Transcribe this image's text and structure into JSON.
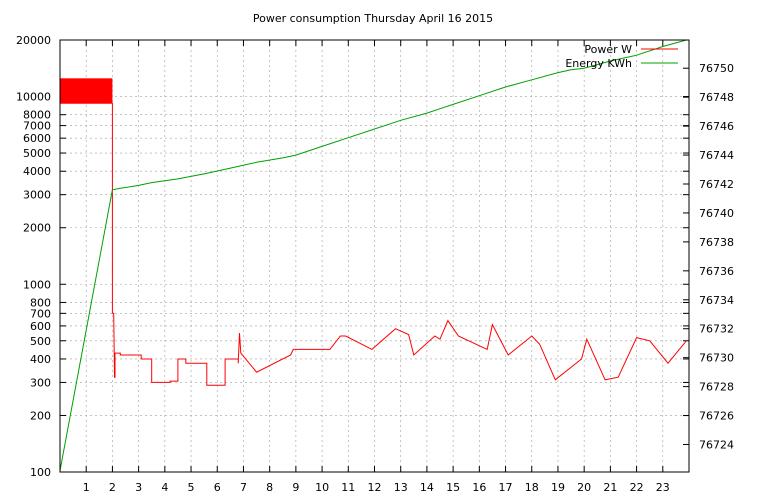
{
  "chart_data": {
    "type": "line",
    "title": "Power consumption Thursday April 16 2015",
    "xlabel": "",
    "ylabel": "",
    "y2label": "",
    "x_range": [
      0,
      24
    ],
    "x_ticks": [
      "1",
      "2",
      "3",
      "4",
      "5",
      "6",
      "7",
      "8",
      "9",
      "10",
      "11",
      "12",
      "13",
      "14",
      "15",
      "16",
      "17",
      "18",
      "19",
      "20",
      "21",
      "22",
      "23"
    ],
    "y_scale": "log",
    "y_range": [
      100,
      20000
    ],
    "y_ticks": [
      {
        "value": 100,
        "label": "100"
      },
      {
        "value": 200,
        "label": "200"
      },
      {
        "value": 300,
        "label": "300"
      },
      {
        "value": 400,
        "label": "400"
      },
      {
        "value": 500,
        "label": "500"
      },
      {
        "value": 600,
        "label": "600"
      },
      {
        "value": 700,
        "label": "700"
      },
      {
        "value": 800,
        "label": "800"
      },
      {
        "value": 1000,
        "label": "1000"
      },
      {
        "value": 2000,
        "label": "2000"
      },
      {
        "value": 3000,
        "label": "3000"
      },
      {
        "value": 4000,
        "label": "4000"
      },
      {
        "value": 5000,
        "label": "5000"
      },
      {
        "value": 6000,
        "label": "6000"
      },
      {
        "value": 7000,
        "label": "7000"
      },
      {
        "value": 8000,
        "label": "8000"
      },
      {
        "value": 10000,
        "label": "10000"
      },
      {
        "value": 20000,
        "label": "20000"
      }
    ],
    "y2_range": [
      76722.1,
      76751.95
    ],
    "y2_ticks": [
      "76724",
      "76726",
      "76728",
      "76730",
      "76732",
      "76734",
      "76736",
      "76738",
      "76740",
      "76742",
      "76744",
      "76746",
      "76748",
      "76750"
    ],
    "grid": true,
    "legend_position": "top-right",
    "series": [
      {
        "name": "Power W",
        "color": "#ff0000",
        "axis": "y",
        "band": {
          "x": [
            0,
            2
          ],
          "y": [
            9200,
            12500
          ]
        },
        "x": [
          0.0,
          2.0,
          2.0,
          2.05,
          2.08,
          2.1,
          2.1,
          2.3,
          2.3,
          3.1,
          3.1,
          3.5,
          3.5,
          4.2,
          4.2,
          4.5,
          4.5,
          4.8,
          4.8,
          5.6,
          5.6,
          6.3,
          6.3,
          6.8,
          6.8,
          6.85,
          6.9,
          6.9,
          7.5,
          7.5,
          8.8,
          8.8,
          8.9,
          8.9,
          10.3,
          10.3,
          10.7,
          10.7,
          10.9,
          10.9,
          11.9,
          11.9,
          12.8,
          12.8,
          13.3,
          13.3,
          13.5,
          13.5,
          14.3,
          14.3,
          14.5,
          14.5,
          14.8,
          14.8,
          15.2,
          15.2,
          16.3,
          16.3,
          16.5,
          16.5,
          17.1,
          17.1,
          18.0,
          18.0,
          18.3,
          18.3,
          18.9,
          18.9,
          19.9,
          19.9,
          20.1,
          20.1,
          20.8,
          20.8,
          21.3,
          21.3,
          22.0,
          22.0,
          22.5,
          22.5,
          23.2,
          23.2,
          23.9
        ],
        "y": [
          9200,
          9200,
          700,
          700,
          320,
          320,
          430,
          430,
          420,
          420,
          400,
          400,
          300,
          300,
          305,
          305,
          400,
          400,
          380,
          380,
          290,
          290,
          400,
          400,
          380,
          550,
          430,
          430,
          340,
          340,
          420,
          420,
          450,
          450,
          450,
          450,
          530,
          530,
          530,
          530,
          450,
          450,
          580,
          580,
          540,
          540,
          420,
          420,
          530,
          530,
          510,
          510,
          640,
          640,
          530,
          530,
          450,
          450,
          610,
          610,
          420,
          420,
          530,
          530,
          480,
          480,
          310,
          310,
          400,
          400,
          510,
          510,
          310,
          310,
          320,
          320,
          520,
          520,
          500,
          500,
          380,
          380,
          500
        ]
      },
      {
        "name": "Energy KWh",
        "color": "#00a000",
        "axis": "y2",
        "x": [
          0,
          2.0,
          2.3,
          3.0,
          3.5,
          4.5,
          5.5,
          6.5,
          7.5,
          8.5,
          9.0,
          10.0,
          11.0,
          12.0,
          13.0,
          14.0,
          14.5,
          15.0,
          16.0,
          17.0,
          18.0,
          19.0,
          19.5,
          20.0,
          21.0,
          22.0,
          23.0,
          23.9
        ],
        "y": [
          76722.2,
          76741.6,
          76741.7,
          76741.9,
          76742.1,
          76742.35,
          76742.7,
          76743.1,
          76743.5,
          76743.8,
          76744.0,
          76744.6,
          76745.2,
          76745.8,
          76746.4,
          76746.9,
          76747.2,
          76747.5,
          76748.1,
          76748.7,
          76749.2,
          76749.7,
          76749.9,
          76750.0,
          76750.5,
          76750.9,
          76751.5,
          76751.95
        ]
      }
    ]
  }
}
